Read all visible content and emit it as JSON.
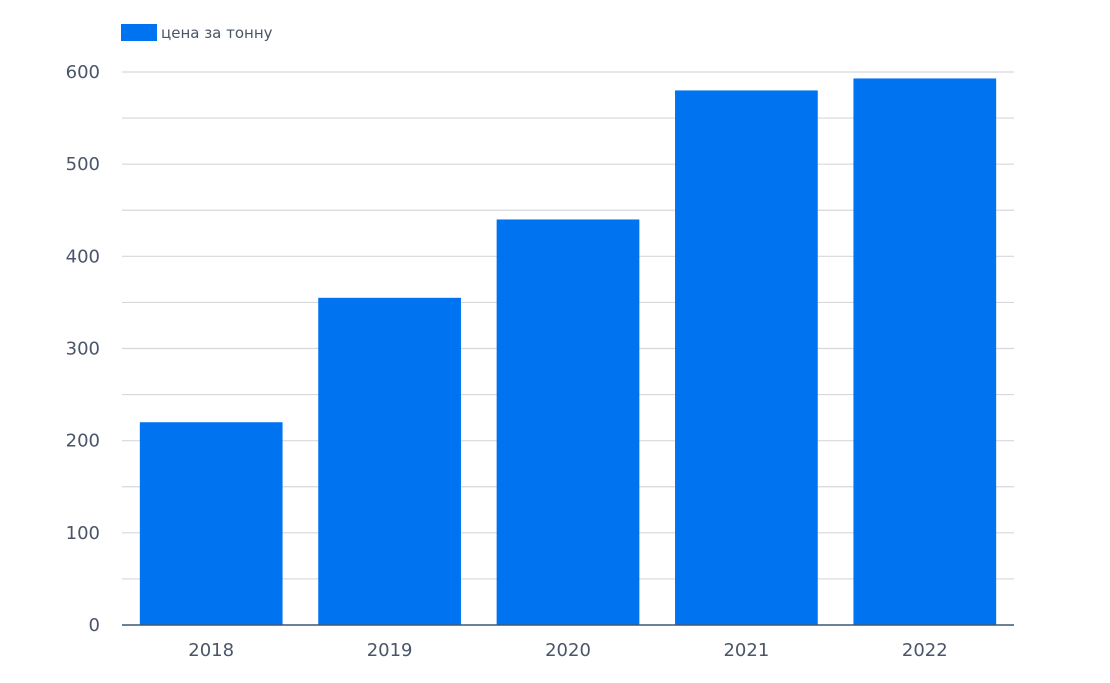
{
  "chart_data": {
    "type": "bar",
    "categories": [
      "2018",
      "2019",
      "2020",
      "2021",
      "2022"
    ],
    "series": [
      {
        "name": "цена за тонну",
        "values": [
          220,
          355,
          440,
          580,
          593
        ]
      }
    ],
    "xlabel": "",
    "ylabel": "",
    "ylim": [
      0,
      600
    ],
    "y_ticks": [
      0,
      100,
      200,
      300,
      400,
      500,
      600
    ],
    "grid": true,
    "legend": "top-left",
    "colors": {
      "bar": "#0073f0",
      "grid": "#d6d8dc",
      "axis": "#3f5873",
      "text": "#4a5568"
    }
  }
}
